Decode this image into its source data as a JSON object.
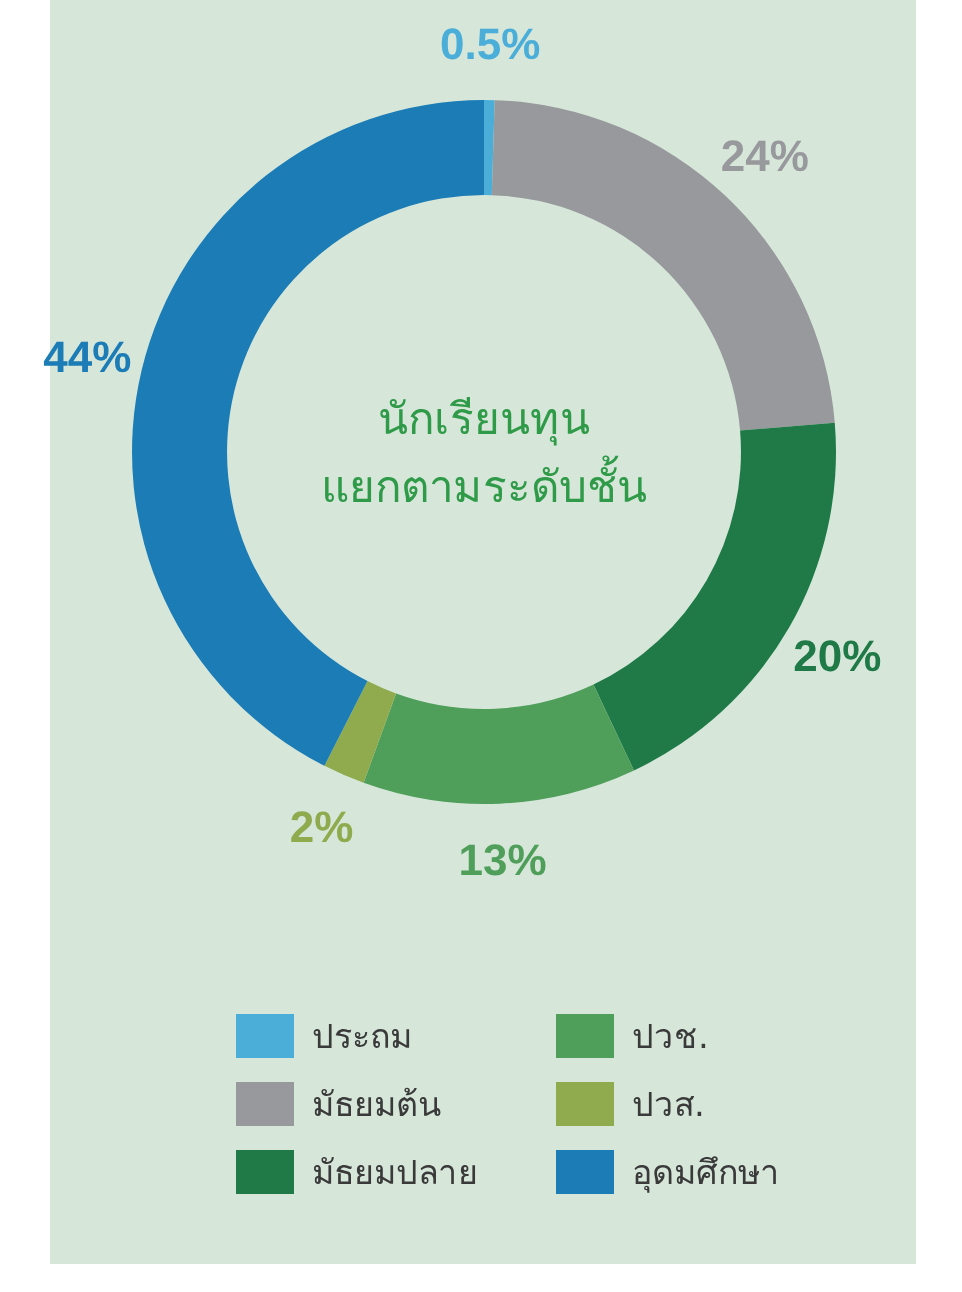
{
  "chart_data": {
    "type": "donut",
    "title": "นักเรียนทุน แยกตามระดับชั้น",
    "categories": [
      "ประถม",
      "มัธยมต้น",
      "มัธยมปลาย",
      "ปวช.",
      "ปวส.",
      "อุดมศึกษา"
    ],
    "values": [
      0.5,
      24,
      20,
      13,
      2,
      44
    ],
    "value_labels": [
      "0.5%",
      "24%",
      "20%",
      "13%",
      "2%",
      "44%"
    ],
    "colors": [
      "#4aaed9",
      "#98999c",
      "#1f7a47",
      "#4f9f5b",
      "#8fab4d",
      "#1b7cb6"
    ],
    "legend": "bottom"
  }
}
